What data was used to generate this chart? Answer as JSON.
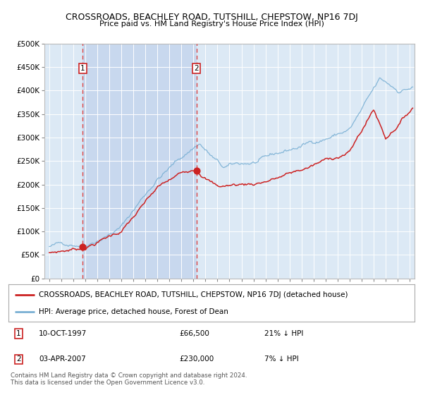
{
  "title": "CROSSROADS, BEACHLEY ROAD, TUTSHILL, CHEPSTOW, NP16 7DJ",
  "subtitle": "Price paid vs. HM Land Registry's House Price Index (HPI)",
  "legend_line1": "CROSSROADS, BEACHLEY ROAD, TUTSHILL, CHEPSTOW, NP16 7DJ (detached house)",
  "legend_line2": "HPI: Average price, detached house, Forest of Dean",
  "footer": "Contains HM Land Registry data © Crown copyright and database right 2024.\nThis data is licensed under the Open Government Licence v3.0.",
  "sale1_label": "1",
  "sale1_date": "10-OCT-1997",
  "sale1_price": "£66,500",
  "sale1_hpi": "21% ↓ HPI",
  "sale1_year": 1997.78,
  "sale1_value": 66500,
  "sale2_label": "2",
  "sale2_date": "03-APR-2007",
  "sale2_price": "£230,000",
  "sale2_hpi": "7% ↓ HPI",
  "sale2_year": 2007.25,
  "sale2_value": 230000,
  "ylim": [
    0,
    500000
  ],
  "yticks": [
    0,
    50000,
    100000,
    150000,
    200000,
    250000,
    300000,
    350000,
    400000,
    450000,
    500000
  ],
  "xlim_start": 1994.6,
  "xlim_end": 2025.4,
  "bg_color": "#ffffff",
  "plot_bg": "#dce9f5",
  "highlight_bg": "#c8d8ee",
  "red_color": "#cc2222",
  "blue_color": "#7ab0d4",
  "grid_color": "#ffffff",
  "vline_color": "#dd4444",
  "label_box_color": "#cc2222"
}
